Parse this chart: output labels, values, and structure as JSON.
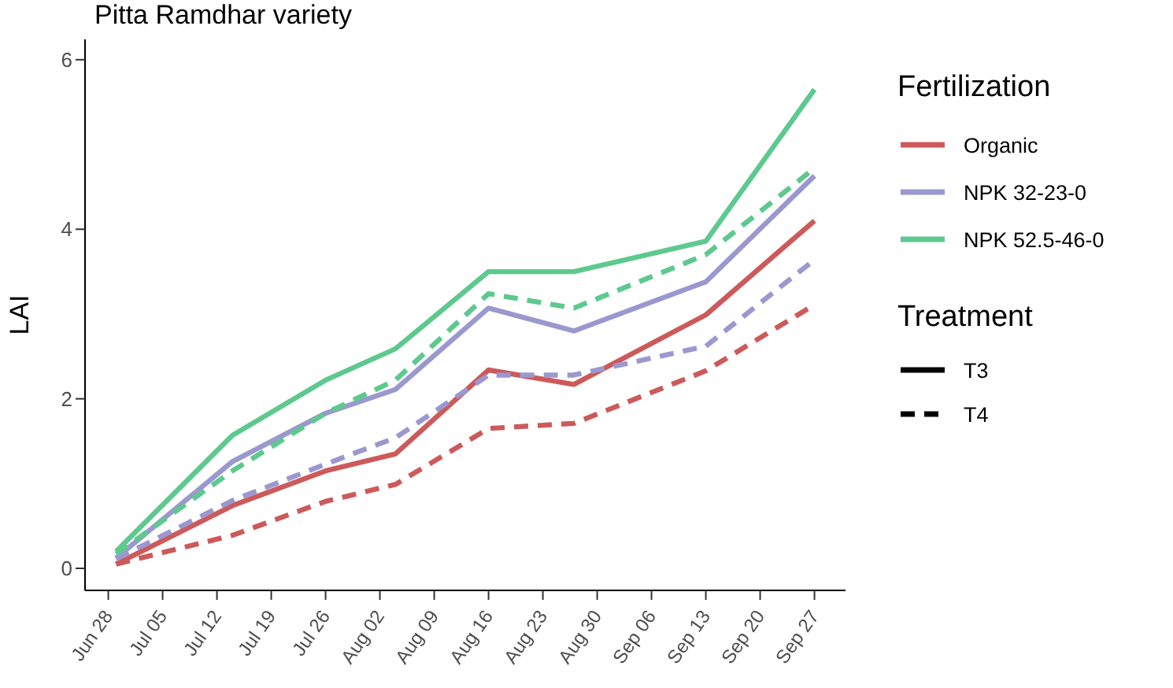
{
  "chart_data": {
    "type": "line",
    "title": "Pitta Ramdhar variety",
    "ylabel": "LAI",
    "legend_title": [
      "Fertilization",
      "Treatment"
    ],
    "annotations": [
      "T3",
      "T4"
    ],
    "x": [
      "--06-29",
      "--07-14",
      "--07-26",
      "--08-04",
      "--08-16",
      "--08-27",
      "--09-13",
      "--09-27"
    ],
    "series": [
      {
        "name": "Organic",
        "color": "#cc5a5a",
        "line_style": "solid",
        "values": [
          0.05,
          0.74,
          1.15,
          1.35,
          2.34,
          2.17,
          2.99,
          4.1
        ]
      },
      {
        "name": "NPK 32-23-0",
        "color": "#9b98cf",
        "line_style": "solid",
        "values": [
          0.12,
          1.26,
          1.83,
          2.11,
          3.07,
          2.8,
          3.38,
          4.63
        ]
      },
      {
        "name": "NPK 52.5-46-0",
        "color": "#5dc98e",
        "line_style": "solid",
        "values": [
          0.2,
          1.57,
          2.22,
          2.59,
          3.5,
          3.5,
          3.86,
          5.65
        ]
      },
      {
        "color": "#cc5a5a",
        "line_style": "dashed",
        "values": [
          0.05,
          0.39,
          0.79,
          0.99,
          1.65,
          1.71,
          2.33,
          3.11
        ]
      },
      {
        "color": "#9b98cf",
        "line_style": "dashed",
        "values": [
          0.11,
          0.8,
          1.23,
          1.54,
          2.28,
          2.28,
          2.62,
          3.64
        ]
      },
      {
        "color": "#5dc98e",
        "line_style": "dashed",
        "values": [
          0.17,
          1.15,
          1.83,
          2.22,
          3.24,
          3.07,
          3.7,
          4.72
        ]
      }
    ],
    "xlim": [
      "--06-25",
      "--10-01"
    ],
    "xticks": [
      {
        "value": "--06-28",
        "label": "Jun 28"
      },
      {
        "value": "--07-05",
        "label": "Jul 05"
      },
      {
        "value": "--07-12",
        "label": "Jul 12"
      },
      {
        "value": "--07-19",
        "label": "Jul 19"
      },
      {
        "value": "--07-26",
        "label": "Jul 26"
      },
      {
        "value": "--08-02",
        "label": "Aug 02"
      },
      {
        "value": "--08-09",
        "label": "Aug 09"
      },
      {
        "value": "--08-16",
        "label": "Aug 16"
      },
      {
        "value": "--08-23",
        "label": "Aug 23"
      },
      {
        "value": "--08-30",
        "label": "Aug 30"
      },
      {
        "value": "--09-06",
        "label": "Sep 06"
      },
      {
        "value": "--09-13",
        "label": "Sep 13"
      },
      {
        "value": "--09-20",
        "label": "Sep 20"
      },
      {
        "value": "--09-27",
        "label": "Sep 27"
      }
    ],
    "ylim": [
      -0.26,
      6.24
    ],
    "yticks": [
      0,
      2,
      4,
      6
    ],
    "grid": false,
    "legend": "right",
    "marker": "none"
  }
}
